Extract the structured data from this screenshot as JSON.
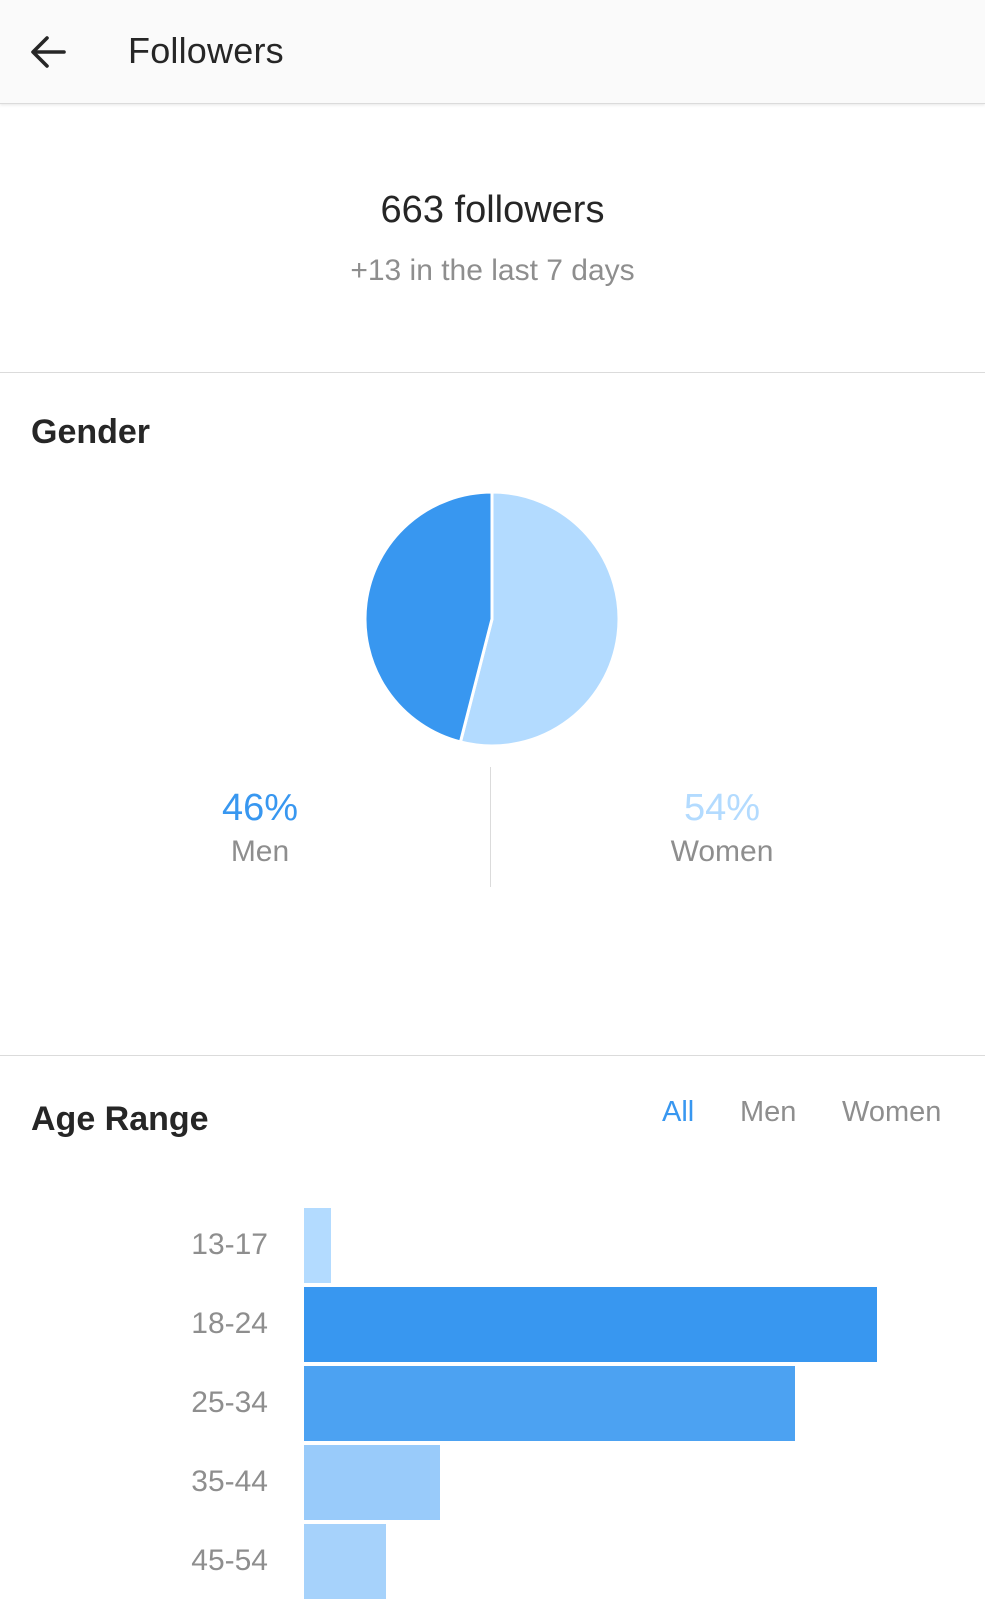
{
  "app_bar": {
    "title": "Followers",
    "back_icon": "arrow-left-icon"
  },
  "summary": {
    "count": "663 followers",
    "change": "+13 in the last 7 days"
  },
  "gender": {
    "title": "Gender",
    "men": {
      "value": "46%",
      "label": "Men",
      "percent": 46,
      "color": "#3897f0"
    },
    "women": {
      "value": "54%",
      "label": "Women",
      "percent": 54,
      "color": "#b3dbff"
    }
  },
  "age_range": {
    "title": "Age Range",
    "filters": [
      {
        "label": "All",
        "active": true
      },
      {
        "label": "Men",
        "active": false
      },
      {
        "label": "Women",
        "active": false
      }
    ],
    "rows": [
      {
        "label": "13-17",
        "relative": 0.047,
        "color": "#b3dbff"
      },
      {
        "label": "18-24",
        "relative": 1.0,
        "color": "#3897f0"
      },
      {
        "label": "25-34",
        "relative": 0.857,
        "color": "#4ca2f2"
      },
      {
        "label": "35-44",
        "relative": 0.238,
        "color": "#99cbfa"
      },
      {
        "label": "45-54",
        "relative": 0.143,
        "color": "#a6d2fb"
      }
    ]
  }
}
